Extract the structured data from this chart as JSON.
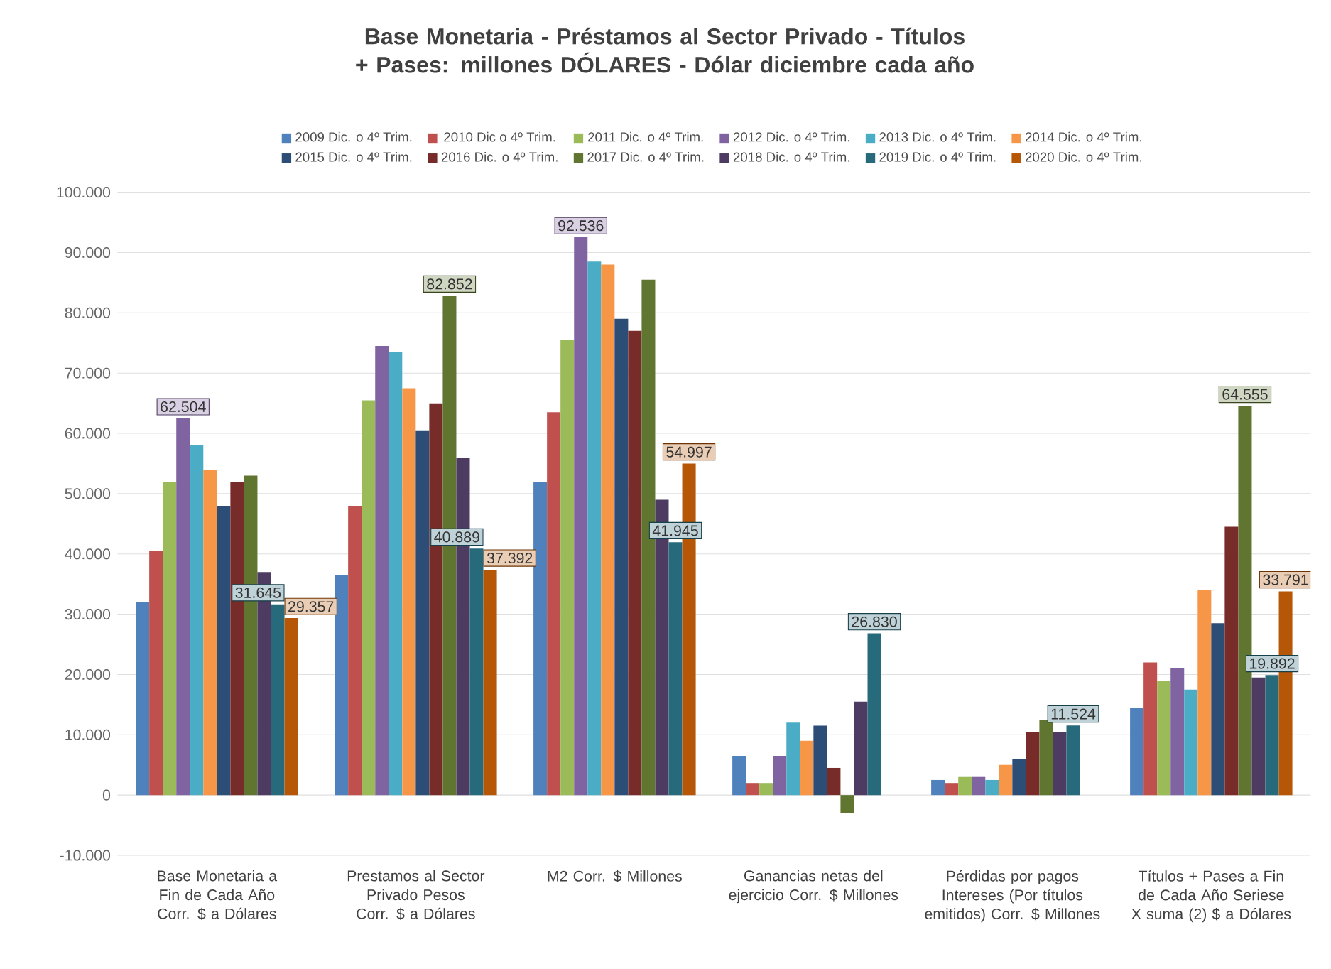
{
  "chart_data": {
    "type": "bar",
    "title": "Base Monetaria - Préstamos al Sector Privado - Títulos + Pases: millones DÓLARES - Dólar diciembre cada año",
    "categories": [
      "Base Monetaria a Fin de Cada Año Corr. $ a Dólares",
      "Prestamos al Sector Privado Pesos Corr. $ a Dólares",
      "M2 Corr. $ Millones",
      "Ganancias netas del ejercicio Corr. $ Millones",
      "Pérdidas por pagos Intereses (Por títulos emitidos) Corr. $  Millones",
      "Títulos + Pases a Fin de Cada Año  Seriese X suma (2) $ a Dólares"
    ],
    "series": [
      {
        "name": "2009 Dic. o 4º Trim.",
        "color": "#4f81bd",
        "values": [
          32000,
          36500,
          52000,
          6500,
          2500,
          14500
        ]
      },
      {
        "name": "2010 Dic o 4º Trim.",
        "color": "#c0504d",
        "values": [
          40500,
          48000,
          63500,
          2000,
          2000,
          22000
        ]
      },
      {
        "name": "2011 Dic. o 4º Trim.",
        "color": "#9bbb59",
        "values": [
          52000,
          65500,
          75500,
          2000,
          3000,
          19000
        ]
      },
      {
        "name": "2012 Dic. o 4º Trim.",
        "color": "#8064a2",
        "values": [
          62504,
          74500,
          92536,
          6500,
          3000,
          21000
        ],
        "value_labels": [
          "62.504",
          null,
          "92.536",
          null,
          null,
          null
        ]
      },
      {
        "name": "2013 Dic. o 4º Trim.",
        "color": "#4bacc6",
        "values": [
          58000,
          73500,
          88500,
          12000,
          2500,
          17500
        ]
      },
      {
        "name": "2014 Dic. o 4º Trim.",
        "color": "#f79646",
        "values": [
          54000,
          67500,
          88000,
          9000,
          5000,
          34000
        ]
      },
      {
        "name": "2015 Dic. o 4º Trim.",
        "color": "#2c4d75",
        "values": [
          48000,
          60500,
          79000,
          11500,
          6000,
          28500
        ]
      },
      {
        "name": "2016 Dic. o 4º Trim.",
        "color": "#772c2a",
        "values": [
          52000,
          65000,
          77000,
          4500,
          10500,
          44500
        ]
      },
      {
        "name": "2017 Dic. o 4º Trim.",
        "color": "#5f7530",
        "values": [
          53000,
          82852,
          85500,
          -3000,
          12500,
          64555
        ],
        "value_labels": [
          null,
          "82.852",
          null,
          null,
          null,
          "64.555"
        ]
      },
      {
        "name": "2018 Dic. o 4º Trim.",
        "color": "#4d3b62",
        "values": [
          37000,
          56000,
          49000,
          15500,
          10500,
          19500
        ]
      },
      {
        "name": "2019 Dic. o 4º Trim.",
        "color": "#276a7c",
        "values": [
          31645,
          40889,
          41945,
          26830,
          11524,
          19892
        ],
        "value_labels": [
          "31.645",
          "40.889",
          "41.945",
          "26.830",
          "11.524",
          "19.892"
        ]
      },
      {
        "name": "2020 Dic. o 4º Trim.",
        "color": "#b65708",
        "values": [
          29357,
          37392,
          54997,
          null,
          null,
          33791
        ],
        "value_labels": [
          "29.357",
          "37.392",
          "54.997",
          null,
          null,
          "33.791"
        ]
      }
    ],
    "ylim": [
      -10000,
      100000
    ],
    "yticks": [
      {
        "value": -10000,
        "label": "-10.000"
      },
      0,
      {
        "value": 10000,
        "label": "10.000"
      },
      {
        "value": 20000,
        "label": "20.000"
      },
      {
        "value": 30000,
        "label": "30.000"
      },
      {
        "value": 40000,
        "label": "40.000"
      },
      {
        "value": 50000,
        "label": "50.000"
      },
      {
        "value": 60000,
        "label": "60.000"
      },
      {
        "value": 70000,
        "label": "70.000"
      },
      {
        "value": 80000,
        "label": "80.000"
      },
      {
        "value": 90000,
        "label": "90.000"
      },
      {
        "value": 100000,
        "label": "100.000"
      }
    ],
    "grid": "y",
    "legend": "top"
  }
}
